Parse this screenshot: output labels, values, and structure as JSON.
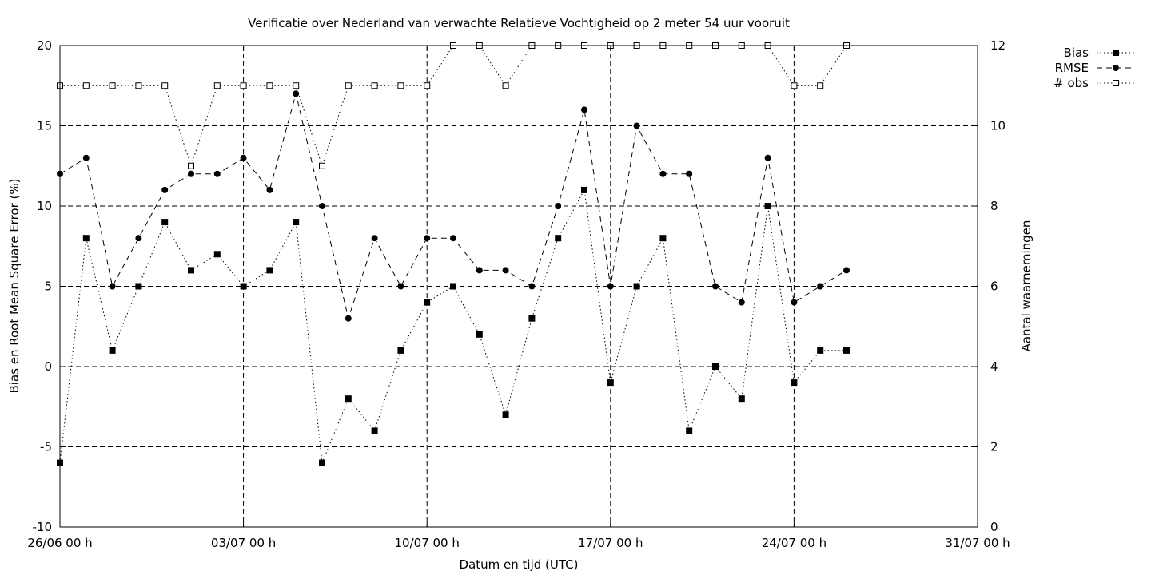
{
  "chart_data": {
    "type": "line",
    "title": "Verificatie over Nederland van verwachte Relatieve Vochtigheid op 2 meter 54 uur vooruit",
    "xlabel": "Datum en tijd (UTC)",
    "ylabel": "Bias en Root Mean Square Error (%)",
    "y2label": "Aantal waarnemingen",
    "x_tick_labels": [
      "26/06 00 h",
      "03/07 00 h",
      "10/07 00 h",
      "17/07 00 h",
      "24/07 00 h",
      "31/07 00 h"
    ],
    "x_days": [
      "26/06",
      "27/06",
      "28/06",
      "29/06",
      "30/06",
      "01/07",
      "02/07",
      "03/07",
      "04/07",
      "05/07",
      "06/07",
      "07/07",
      "08/07",
      "09/07",
      "10/07",
      "11/07",
      "12/07",
      "13/07",
      "14/07",
      "15/07",
      "16/07",
      "17/07",
      "18/07",
      "19/07",
      "20/07",
      "21/07",
      "22/07",
      "23/07",
      "24/07",
      "25/07",
      "26/07"
    ],
    "xlim": [
      "26/06",
      "31/07"
    ],
    "ylim": [
      -10,
      20
    ],
    "y_ticks": [
      -10,
      -5,
      0,
      5,
      10,
      15,
      20
    ],
    "y2lim": [
      0,
      12
    ],
    "y2_ticks": [
      0,
      2,
      4,
      6,
      8,
      10,
      12
    ],
    "grid": true,
    "legend_position": "top-right outside",
    "series": [
      {
        "name": "Bias",
        "axis": "left",
        "marker": "filled-square",
        "line_style": "dotted",
        "values": [
          -6,
          8,
          1,
          5,
          9,
          6,
          7,
          5,
          6,
          9,
          -6,
          -2,
          -4,
          1,
          4,
          5,
          2,
          -3,
          3,
          8,
          11,
          -1,
          5,
          8,
          -4,
          0,
          -2,
          10,
          -1,
          1,
          1
        ]
      },
      {
        "name": "RMSE",
        "axis": "left",
        "marker": "filled-circle",
        "line_style": "dashed",
        "values": [
          12,
          13,
          5,
          8,
          11,
          12,
          12,
          13,
          11,
          17,
          10,
          3,
          8,
          5,
          8,
          8,
          6,
          6,
          5,
          10,
          16,
          5,
          15,
          12,
          12,
          5,
          4,
          13,
          4,
          5,
          6
        ]
      },
      {
        "name": "# obs",
        "axis": "right",
        "marker": "open-square",
        "line_style": "dotted",
        "values": [
          11,
          11,
          11,
          11,
          11,
          9,
          11,
          11,
          11,
          11,
          9,
          11,
          11,
          11,
          11,
          12,
          12,
          11,
          12,
          12,
          12,
          12,
          12,
          12,
          12,
          12,
          12,
          12,
          11,
          11,
          12
        ]
      }
    ]
  }
}
